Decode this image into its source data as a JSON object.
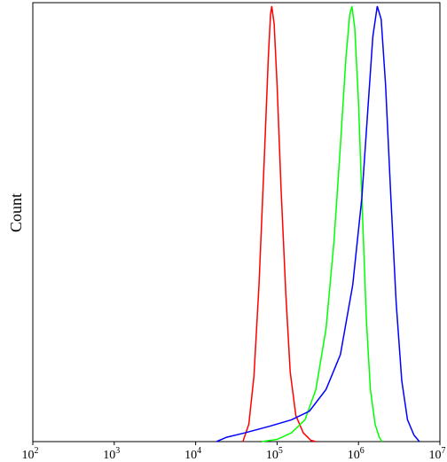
{
  "chart_data": {
    "type": "line",
    "xscale": "log",
    "xlim": [
      100,
      10000000
    ],
    "ylim": [
      0,
      1
    ],
    "xlabel": "",
    "ylabel": "Count",
    "grid": false,
    "legend": "none",
    "x_ticks": [
      {
        "value": 100,
        "base": "10",
        "exp": "2"
      },
      {
        "value": 1000,
        "base": "10",
        "exp": "3"
      },
      {
        "value": 10000,
        "base": "10",
        "exp": "4"
      },
      {
        "value": 100000,
        "base": "10",
        "exp": "5"
      },
      {
        "value": 1000000,
        "base": "10",
        "exp": "6"
      },
      {
        "value": 10000000,
        "base": "10",
        "exp": "7"
      }
    ],
    "series": [
      {
        "color": "#ff0000",
        "points": [
          [
            38000,
            0.0
          ],
          [
            45000,
            0.04
          ],
          [
            52000,
            0.15
          ],
          [
            60000,
            0.36
          ],
          [
            70000,
            0.66
          ],
          [
            78000,
            0.88
          ],
          [
            83000,
            0.98
          ],
          [
            86000,
            1.0
          ],
          [
            92000,
            0.96
          ],
          [
            100000,
            0.82
          ],
          [
            112000,
            0.58
          ],
          [
            128000,
            0.34
          ],
          [
            145000,
            0.16
          ],
          [
            170000,
            0.06
          ],
          [
            210000,
            0.02
          ],
          [
            260000,
            0.003
          ],
          [
            300000,
            0.0
          ]
        ]
      },
      {
        "color": "#00ff00",
        "points": [
          [
            65000,
            0.0
          ],
          [
            100000,
            0.005
          ],
          [
            150000,
            0.02
          ],
          [
            220000,
            0.05
          ],
          [
            300000,
            0.12
          ],
          [
            400000,
            0.26
          ],
          [
            500000,
            0.46
          ],
          [
            600000,
            0.68
          ],
          [
            700000,
            0.88
          ],
          [
            780000,
            0.98
          ],
          [
            830000,
            1.0
          ],
          [
            900000,
            0.95
          ],
          [
            1000000,
            0.78
          ],
          [
            1120000,
            0.52
          ],
          [
            1250000,
            0.28
          ],
          [
            1400000,
            0.12
          ],
          [
            1600000,
            0.04
          ],
          [
            1800000,
            0.01
          ],
          [
            1950000,
            0.0
          ]
        ]
      },
      {
        "color": "#0000ff",
        "points": [
          [
            18000,
            0.0
          ],
          [
            24000,
            0.01
          ],
          [
            40000,
            0.02
          ],
          [
            80000,
            0.035
          ],
          [
            150000,
            0.05
          ],
          [
            250000,
            0.07
          ],
          [
            400000,
            0.12
          ],
          [
            600000,
            0.2
          ],
          [
            850000,
            0.36
          ],
          [
            1100000,
            0.56
          ],
          [
            1300000,
            0.76
          ],
          [
            1500000,
            0.93
          ],
          [
            1700000,
            1.0
          ],
          [
            1900000,
            0.97
          ],
          [
            2150000,
            0.82
          ],
          [
            2500000,
            0.56
          ],
          [
            2900000,
            0.32
          ],
          [
            3400000,
            0.14
          ],
          [
            4000000,
            0.05
          ],
          [
            4800000,
            0.015
          ],
          [
            5600000,
            0.0
          ]
        ]
      }
    ]
  }
}
